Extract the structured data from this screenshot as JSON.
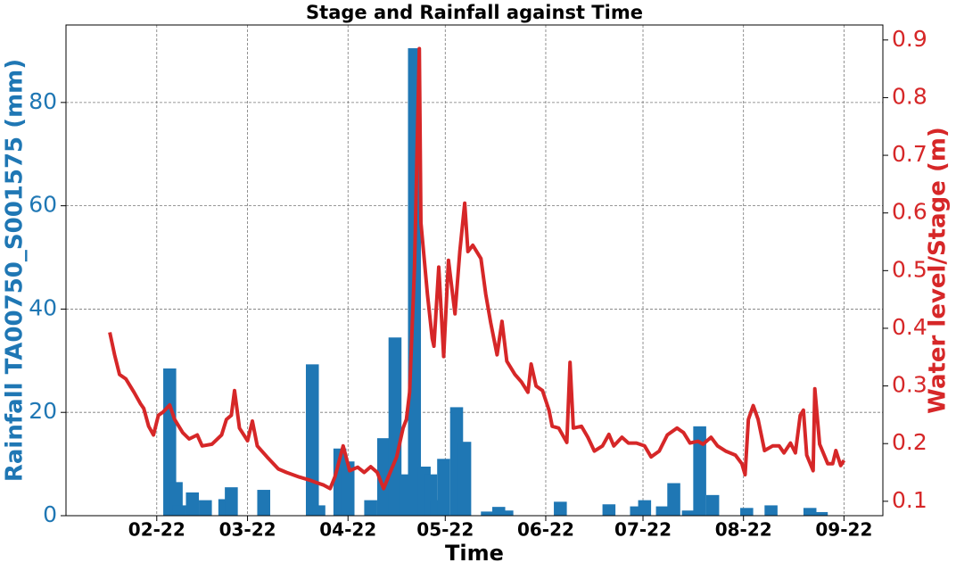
{
  "chart_data": {
    "type": "combo",
    "title": "Stage and Rainfall against Time",
    "xlabel": "Time",
    "ylabel": "Rainfall TA00750_S001575 (mm)",
    "y2label": "Water level/Stage (m)",
    "xlim": [
      4,
      256
    ],
    "xticks": [
      {
        "value": 32,
        "label": "02-22"
      },
      {
        "value": 60,
        "label": "03-22"
      },
      {
        "value": 91,
        "label": "04-22"
      },
      {
        "value": 121,
        "label": "05-22"
      },
      {
        "value": 152,
        "label": "06-22"
      },
      {
        "value": 182,
        "label": "07-22"
      },
      {
        "value": 213,
        "label": "08-22"
      },
      {
        "value": 244,
        "label": "09-22"
      }
    ],
    "ylim": [
      0,
      95
    ],
    "yticks": [
      0,
      20,
      40,
      60,
      80
    ],
    "y2lim": [
      0.075,
      0.926
    ],
    "y2ticks": [
      0.1,
      0.2,
      0.3,
      0.4,
      0.5,
      0.6,
      0.7,
      0.8,
      0.9
    ],
    "grid": true,
    "ycolor": "#1f77b4",
    "y2color": "#d62728",
    "series": [
      {
        "type": "bar",
        "color": "#1f77b4",
        "x": [
          36,
          38,
          39,
          43,
          47,
          53,
          55,
          65,
          80,
          82,
          88.5,
          91,
          98,
          102,
          105.5,
          109,
          111.5,
          114.5,
          116.5,
          118.5,
          120.5,
          124.5,
          127,
          134,
          137.5,
          140,
          156.5,
          171.5,
          180,
          182.5,
          188,
          191.5,
          196,
          199.5,
          203.5,
          214,
          221.5,
          233.5,
          237
        ],
        "values": [
          28.5,
          6.5,
          2,
          4.5,
          3,
          3.2,
          5.5,
          5,
          29.3,
          2,
          13,
          10.5,
          3,
          15,
          34.5,
          8,
          90.5,
          9.5,
          8,
          3,
          11,
          21,
          14.3,
          0.8,
          1.7,
          1,
          2.7,
          2.2,
          1.8,
          3,
          1.8,
          6.3,
          1,
          17.3,
          4,
          1.5,
          2,
          1.5,
          0.7
        ]
      },
      {
        "type": "line",
        "color": "#d62728",
        "axis": "y2",
        "x": [
          17.5,
          19,
          20.5,
          22.5,
          25,
          27,
          28,
          29.5,
          31,
          32.5,
          34,
          36,
          37.5,
          40,
          42,
          44.5,
          46,
          49,
          52,
          53.5,
          55,
          56,
          57.5,
          60,
          61.5,
          63,
          66,
          69.5,
          72,
          76,
          79,
          81.5,
          83.5,
          85.5,
          87,
          89.5,
          91.5,
          94,
          96,
          98,
          100,
          102,
          104,
          106,
          108,
          109,
          110,
          111.5,
          113,
          113.5,
          115.5,
          117,
          117.5,
          119,
          120.5,
          122,
          124,
          125.5,
          127,
          128,
          129.5,
          132,
          133.5,
          135,
          137,
          138.5,
          140,
          142.5,
          144.5,
          146.5,
          147.5,
          149,
          151,
          153,
          154,
          156,
          158.5,
          159.5,
          160.5,
          163,
          165,
          167,
          169.5,
          171.5,
          173,
          175.5,
          177.5,
          180,
          182.5,
          184.5,
          187,
          189.5,
          192.5,
          194.5,
          196.5,
          199,
          200.5,
          203,
          205,
          207.5,
          210.5,
          212.5,
          213.5,
          214.5,
          216,
          217.5,
          219.5,
          222,
          224,
          225.5,
          227.5,
          229,
          230.5,
          231.5,
          232.5,
          234.5,
          235,
          236.5,
          239,
          240.5,
          241.5,
          243,
          244
        ],
        "values": [
          0.393,
          0.354,
          0.32,
          0.312,
          0.289,
          0.269,
          0.261,
          0.23,
          0.215,
          0.249,
          0.255,
          0.267,
          0.242,
          0.219,
          0.208,
          0.215,
          0.196,
          0.199,
          0.215,
          0.242,
          0.249,
          0.292,
          0.227,
          0.205,
          0.239,
          0.196,
          0.177,
          0.156,
          0.15,
          0.142,
          0.137,
          0.132,
          0.128,
          0.122,
          0.143,
          0.196,
          0.153,
          0.159,
          0.15,
          0.16,
          0.15,
          0.122,
          0.15,
          0.177,
          0.227,
          0.242,
          0.289,
          0.506,
          0.885,
          0.583,
          0.459,
          0.382,
          0.369,
          0.506,
          0.351,
          0.518,
          0.425,
          0.533,
          0.617,
          0.533,
          0.544,
          0.521,
          0.459,
          0.41,
          0.354,
          0.412,
          0.343,
          0.32,
          0.307,
          0.289,
          0.338,
          0.3,
          0.292,
          0.258,
          0.23,
          0.227,
          0.202,
          0.341,
          0.227,
          0.23,
          0.211,
          0.187,
          0.196,
          0.216,
          0.196,
          0.211,
          0.201,
          0.201,
          0.196,
          0.177,
          0.187,
          0.215,
          0.227,
          0.219,
          0.201,
          0.204,
          0.199,
          0.211,
          0.196,
          0.187,
          0.18,
          0.165,
          0.146,
          0.242,
          0.266,
          0.242,
          0.188,
          0.196,
          0.196,
          0.184,
          0.201,
          0.184,
          0.249,
          0.258,
          0.18,
          0.153,
          0.295,
          0.199,
          0.165,
          0.165,
          0.188,
          0.162,
          0.171
        ]
      }
    ]
  }
}
